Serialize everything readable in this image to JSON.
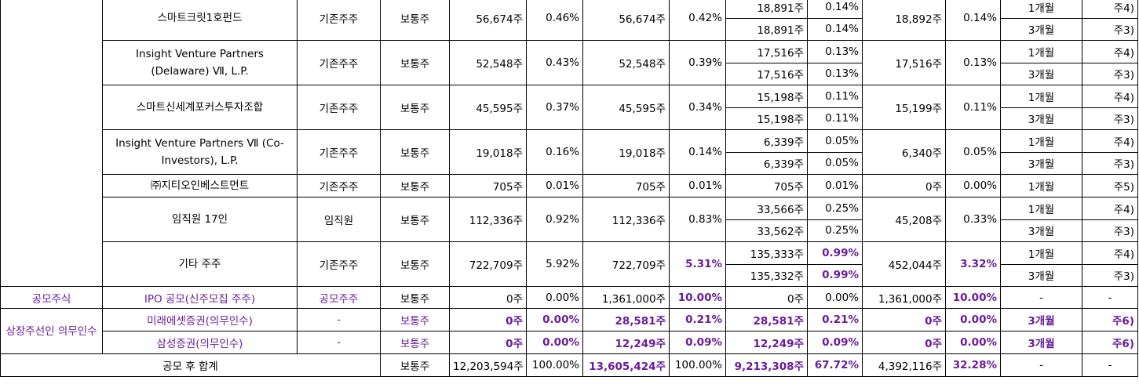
{
  "rows": [
    {
      "name": "스마트크릿1호펀드",
      "type": "기존주주",
      "stock": "보통주",
      "pre_qty": "56,674주",
      "pre_pct": "0.46%",
      "post_qty": "56,674주",
      "post_pct": "0.42%",
      "lock": [
        {
          "qty": "18,891주",
          "pct": "0.14%",
          "period": "1개월",
          "note": "주4)"
        },
        {
          "qty": "18,891주",
          "pct": "0.14%",
          "period": "3개월",
          "note": "주3)"
        }
      ],
      "free_qty": "18,892주",
      "free_pct": "0.14%"
    },
    {
      "name": "Insight Venture Partners (Delaware) Ⅶ, L.P.",
      "type": "기존주주",
      "stock": "보통주",
      "pre_qty": "52,548주",
      "pre_pct": "0.43%",
      "post_qty": "52,548주",
      "post_pct": "0.39%",
      "lock": [
        {
          "qty": "17,516주",
          "pct": "0.13%",
          "period": "1개월",
          "note": "주4)"
        },
        {
          "qty": "17,516주",
          "pct": "0.13%",
          "period": "3개월",
          "note": "주3)"
        }
      ],
      "free_qty": "17,516주",
      "free_pct": "0.13%"
    },
    {
      "name": "스마트신세계포커스투자조합",
      "type": "기존주주",
      "stock": "보통주",
      "pre_qty": "45,595주",
      "pre_pct": "0.37%",
      "post_qty": "45,595주",
      "post_pct": "0.34%",
      "lock": [
        {
          "qty": "15,198주",
          "pct": "0.11%",
          "period": "1개월",
          "note": "주4)"
        },
        {
          "qty": "15,198주",
          "pct": "0.11%",
          "period": "3개월",
          "note": "주3)"
        }
      ],
      "free_qty": "15,199주",
      "free_pct": "0.11%"
    },
    {
      "name": "Insight Venture Partners Ⅶ (Co-Investors), L.P.",
      "type": "기존주주",
      "stock": "보통주",
      "pre_qty": "19,018주",
      "pre_pct": "0.16%",
      "post_qty": "19,018주",
      "post_pct": "0.14%",
      "lock": [
        {
          "qty": "6,339주",
          "pct": "0.05%",
          "period": "1개월",
          "note": "주4)"
        },
        {
          "qty": "6,339주",
          "pct": "0.05%",
          "period": "3개월",
          "note": "주3)"
        }
      ],
      "free_qty": "6,340주",
      "free_pct": "0.05%"
    },
    {
      "name": "㈜지티오인베스트먼트",
      "type": "기존주주",
      "stock": "보통주",
      "pre_qty": "705주",
      "pre_pct": "0.01%",
      "post_qty": "705주",
      "post_pct": "0.01%",
      "lock": [
        {
          "qty": "705주",
          "pct": "0.01%",
          "period": "1개월",
          "note": "주5)"
        }
      ],
      "free_qty": "0주",
      "free_pct": "0.00%"
    },
    {
      "name": "임직원 17인",
      "type": "임직원",
      "stock": "보통주",
      "pre_qty": "112,336주",
      "pre_pct": "0.92%",
      "post_qty": "112,336주",
      "post_pct": "0.83%",
      "lock": [
        {
          "qty": "33,566주",
          "pct": "0.25%",
          "period": "1개월",
          "note": "주4)"
        },
        {
          "qty": "33,562주",
          "pct": "0.25%",
          "period": "3개월",
          "note": "주3)"
        }
      ],
      "free_qty": "45,208주",
      "free_pct": "0.33%"
    },
    {
      "name": "기타 주주",
      "type": "기존주주",
      "stock": "보통주",
      "pre_qty": "722,709주",
      "pre_pct": "5.92%",
      "post_qty": "722,709주",
      "post_pct": "5.31%",
      "lock": [
        {
          "qty": "135,333주",
          "pct": "0.99%",
          "period": "1개월",
          "note": "주4)"
        },
        {
          "qty": "135,332주",
          "pct": "0.99%",
          "period": "3개월",
          "note": "주3)"
        }
      ],
      "free_qty": "452,044주",
      "free_pct": "3.32%"
    }
  ],
  "ipo": {
    "group": "공모주식",
    "name": "IPO 공모(신주모집 주주)",
    "type": "공모주주",
    "stock": "보통주",
    "pre_qty": "0주",
    "pre_pct": "0.00%",
    "post_qty": "1,361,000주",
    "post_pct": "10.00%",
    "lock_qty": "0주",
    "lock_pct": "0.00%",
    "free_qty": "1,361,000주",
    "free_pct": "10.00%",
    "period": "-",
    "note": "-"
  },
  "underwriter": {
    "group": "상장주선인 의무인수",
    "items": [
      {
        "name": "미래에셋증권(의무인수)",
        "type": "-",
        "stock": "보통주",
        "pre_qty": "0주",
        "pre_pct": "0.00%",
        "post_qty": "28,581주",
        "post_pct": "0.21%",
        "lock_qty": "28,581주",
        "lock_pct": "0.21%",
        "free_qty": "0주",
        "free_pct": "0.00%",
        "period": "3개월",
        "note": "주6)"
      },
      {
        "name": "삼성증권(의무인수)",
        "type": "-",
        "stock": "보통주",
        "pre_qty": "0주",
        "pre_pct": "0.00%",
        "post_qty": "12,249주",
        "post_pct": "0.09%",
        "lock_qty": "12,249주",
        "lock_pct": "0.09%",
        "free_qty": "0주",
        "free_pct": "0.00%",
        "period": "3개월",
        "note": "주6)"
      }
    ]
  },
  "total": {
    "label": "공모 후 합계",
    "stock": "보통주",
    "pre_qty": "12,203,594주",
    "pre_pct": "100.00%",
    "post_qty": "13,605,424주",
    "post_pct": "100.00%",
    "lock_qty": "9,213,308주",
    "lock_pct": "67.72%",
    "free_qty": "4,392,116주",
    "free_pct": "32.28%",
    "period": "-",
    "note": "-"
  }
}
